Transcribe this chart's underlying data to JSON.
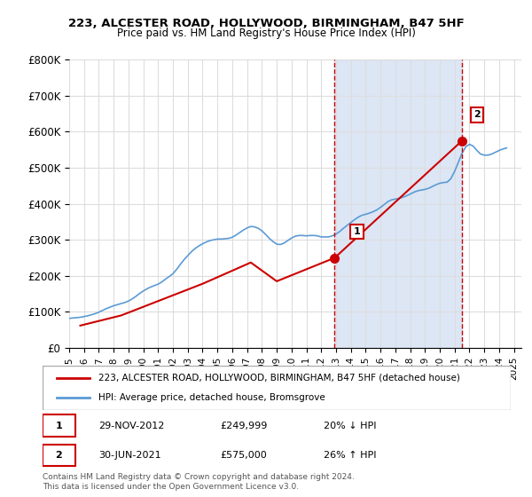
{
  "title": "223, ALCESTER ROAD, HOLLYWOOD, BIRMINGHAM, B47 5HF",
  "subtitle": "Price paid vs. HM Land Registry's House Price Index (HPI)",
  "ylabel": "",
  "legend_property": "223, ALCESTER ROAD, HOLLYWOOD, BIRMINGHAM, B47 5HF (detached house)",
  "legend_hpi": "HPI: Average price, detached house, Bromsgrove",
  "annotation1": {
    "label": "1",
    "date_str": "29-NOV-2012",
    "price": "£249,999",
    "pct": "20% ↓ HPI"
  },
  "annotation2": {
    "label": "2",
    "date_str": "30-JUN-2021",
    "price": "£575,000",
    "pct": "26% ↑ HPI"
  },
  "footnote": "Contains HM Land Registry data © Crown copyright and database right 2024.\nThis data is licensed under the Open Government Licence v3.0.",
  "red_color": "#cc0000",
  "blue_color": "#5b9bd5",
  "shaded_color": "#dce6f5",
  "annotation_box_color": "#cc0000",
  "ylim": [
    0,
    800000
  ],
  "yticks": [
    0,
    100000,
    200000,
    300000,
    400000,
    500000,
    600000,
    700000,
    800000
  ],
  "ytick_labels": [
    "£0",
    "£100K",
    "£200K",
    "£300K",
    "£400K",
    "£500K",
    "£600K",
    "£700K",
    "£800K"
  ],
  "xlim_start": 1995.0,
  "xlim_end": 2025.5,
  "xtick_years": [
    1995,
    1996,
    1997,
    1998,
    1999,
    2000,
    2001,
    2002,
    2003,
    2004,
    2005,
    2006,
    2007,
    2008,
    2009,
    2010,
    2011,
    2012,
    2013,
    2014,
    2015,
    2016,
    2017,
    2018,
    2019,
    2020,
    2021,
    2022,
    2023,
    2024,
    2025
  ],
  "vline1_x": 2012.91,
  "vline2_x": 2021.5,
  "ann1_marker_x": 2012.91,
  "ann1_marker_y": 249999,
  "ann2_marker_x": 2021.5,
  "ann2_marker_y": 575000,
  "hpi_series": {
    "x": [
      1995.0,
      1995.25,
      1995.5,
      1995.75,
      1996.0,
      1996.25,
      1996.5,
      1996.75,
      1997.0,
      1997.25,
      1997.5,
      1997.75,
      1998.0,
      1998.25,
      1998.5,
      1998.75,
      1999.0,
      1999.25,
      1999.5,
      1999.75,
      2000.0,
      2000.25,
      2000.5,
      2000.75,
      2001.0,
      2001.25,
      2001.5,
      2001.75,
      2002.0,
      2002.25,
      2002.5,
      2002.75,
      2003.0,
      2003.25,
      2003.5,
      2003.75,
      2004.0,
      2004.25,
      2004.5,
      2004.75,
      2005.0,
      2005.25,
      2005.5,
      2005.75,
      2006.0,
      2006.25,
      2006.5,
      2006.75,
      2007.0,
      2007.25,
      2007.5,
      2007.75,
      2008.0,
      2008.25,
      2008.5,
      2008.75,
      2009.0,
      2009.25,
      2009.5,
      2009.75,
      2010.0,
      2010.25,
      2010.5,
      2010.75,
      2011.0,
      2011.25,
      2011.5,
      2011.75,
      2012.0,
      2012.25,
      2012.5,
      2012.75,
      2013.0,
      2013.25,
      2013.5,
      2013.75,
      2014.0,
      2014.25,
      2014.5,
      2014.75,
      2015.0,
      2015.25,
      2015.5,
      2015.75,
      2016.0,
      2016.25,
      2016.5,
      2016.75,
      2017.0,
      2017.25,
      2017.5,
      2017.75,
      2018.0,
      2018.25,
      2018.5,
      2018.75,
      2019.0,
      2019.25,
      2019.5,
      2019.75,
      2020.0,
      2020.25,
      2020.5,
      2020.75,
      2021.0,
      2021.25,
      2021.5,
      2021.75,
      2022.0,
      2022.25,
      2022.5,
      2022.75,
      2023.0,
      2023.25,
      2023.5,
      2023.75,
      2024.0,
      2024.25,
      2024.5
    ],
    "y": [
      82000,
      83000,
      84000,
      85000,
      87000,
      89000,
      92000,
      95000,
      99000,
      104000,
      109000,
      113000,
      117000,
      120000,
      123000,
      126000,
      130000,
      136000,
      143000,
      151000,
      158000,
      164000,
      169000,
      173000,
      177000,
      183000,
      191000,
      198000,
      206000,
      218000,
      232000,
      245000,
      256000,
      267000,
      276000,
      283000,
      289000,
      294000,
      298000,
      300000,
      302000,
      302000,
      303000,
      304000,
      307000,
      313000,
      320000,
      327000,
      333000,
      337000,
      336000,
      332000,
      325000,
      315000,
      304000,
      295000,
      288000,
      287000,
      291000,
      298000,
      305000,
      310000,
      312000,
      312000,
      311000,
      312000,
      312000,
      311000,
      308000,
      308000,
      308000,
      311000,
      316000,
      323000,
      332000,
      340000,
      348000,
      356000,
      363000,
      368000,
      371000,
      374000,
      378000,
      383000,
      390000,
      398000,
      406000,
      411000,
      413000,
      415000,
      418000,
      422000,
      427000,
      432000,
      436000,
      438000,
      440000,
      443000,
      448000,
      453000,
      457000,
      459000,
      460000,
      470000,
      490000,
      515000,
      540000,
      558000,
      565000,
      560000,
      548000,
      538000,
      535000,
      535000,
      538000,
      543000,
      548000,
      552000,
      555000
    ]
  },
  "price_paid_series": {
    "x": [
      1995.75,
      1998.5,
      2001.0,
      2004.0,
      2007.25,
      2009.0,
      2012.91,
      2021.5
    ],
    "y": [
      62000,
      90000,
      130000,
      178000,
      237000,
      185000,
      249999,
      575000
    ]
  }
}
